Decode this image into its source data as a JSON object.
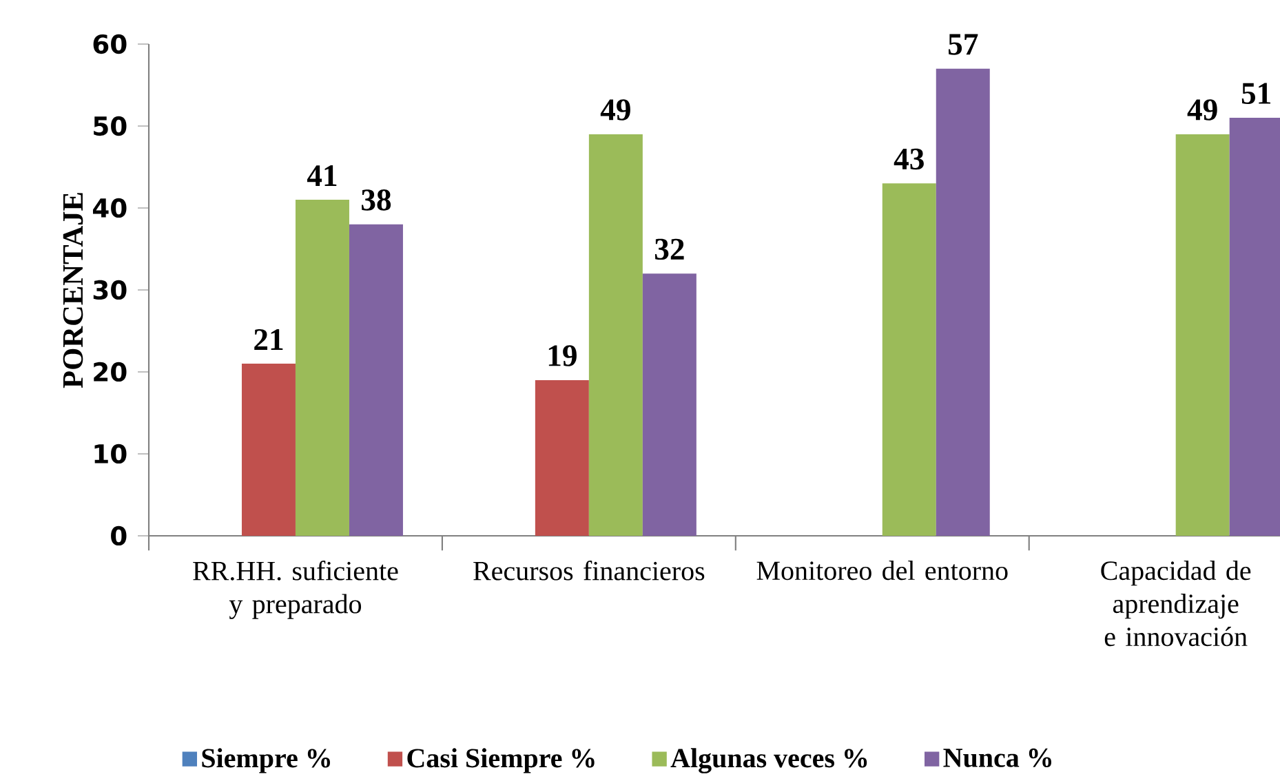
{
  "chart_data": {
    "type": "bar",
    "ylabel": "PORCENTAJE",
    "categories": [
      "RR.HH. suficiente y preparado",
      "Recursos financieros",
      "Monitoreo del entorno",
      "Capacidad de aprendizaje e innovación"
    ],
    "series": [
      {
        "name": "Siempre %",
        "color": "#4f81bd",
        "values": [
          0,
          0,
          0,
          0
        ],
        "value_labels": [
          null,
          null,
          null,
          null
        ]
      },
      {
        "name": "Casi Siempre %",
        "color": "#c0504d",
        "values": [
          21,
          19,
          0,
          0
        ],
        "value_labels": [
          "21",
          "19",
          null,
          null
        ]
      },
      {
        "name": "Algunas veces %",
        "color": "#9bbb59",
        "values": [
          41,
          49,
          43,
          49
        ],
        "value_labels": [
          "41",
          "49",
          "43",
          "49"
        ]
      },
      {
        "name": "Nunca %",
        "color": "#8064a2",
        "values": [
          38,
          32,
          57,
          51
        ],
        "value_labels": [
          "38",
          "32",
          "57",
          "51"
        ]
      }
    ],
    "ylim": [
      0,
      60
    ],
    "yticks": [
      0,
      10,
      20,
      30,
      40,
      50,
      60
    ],
    "legend": "bottom",
    "grid": false
  }
}
